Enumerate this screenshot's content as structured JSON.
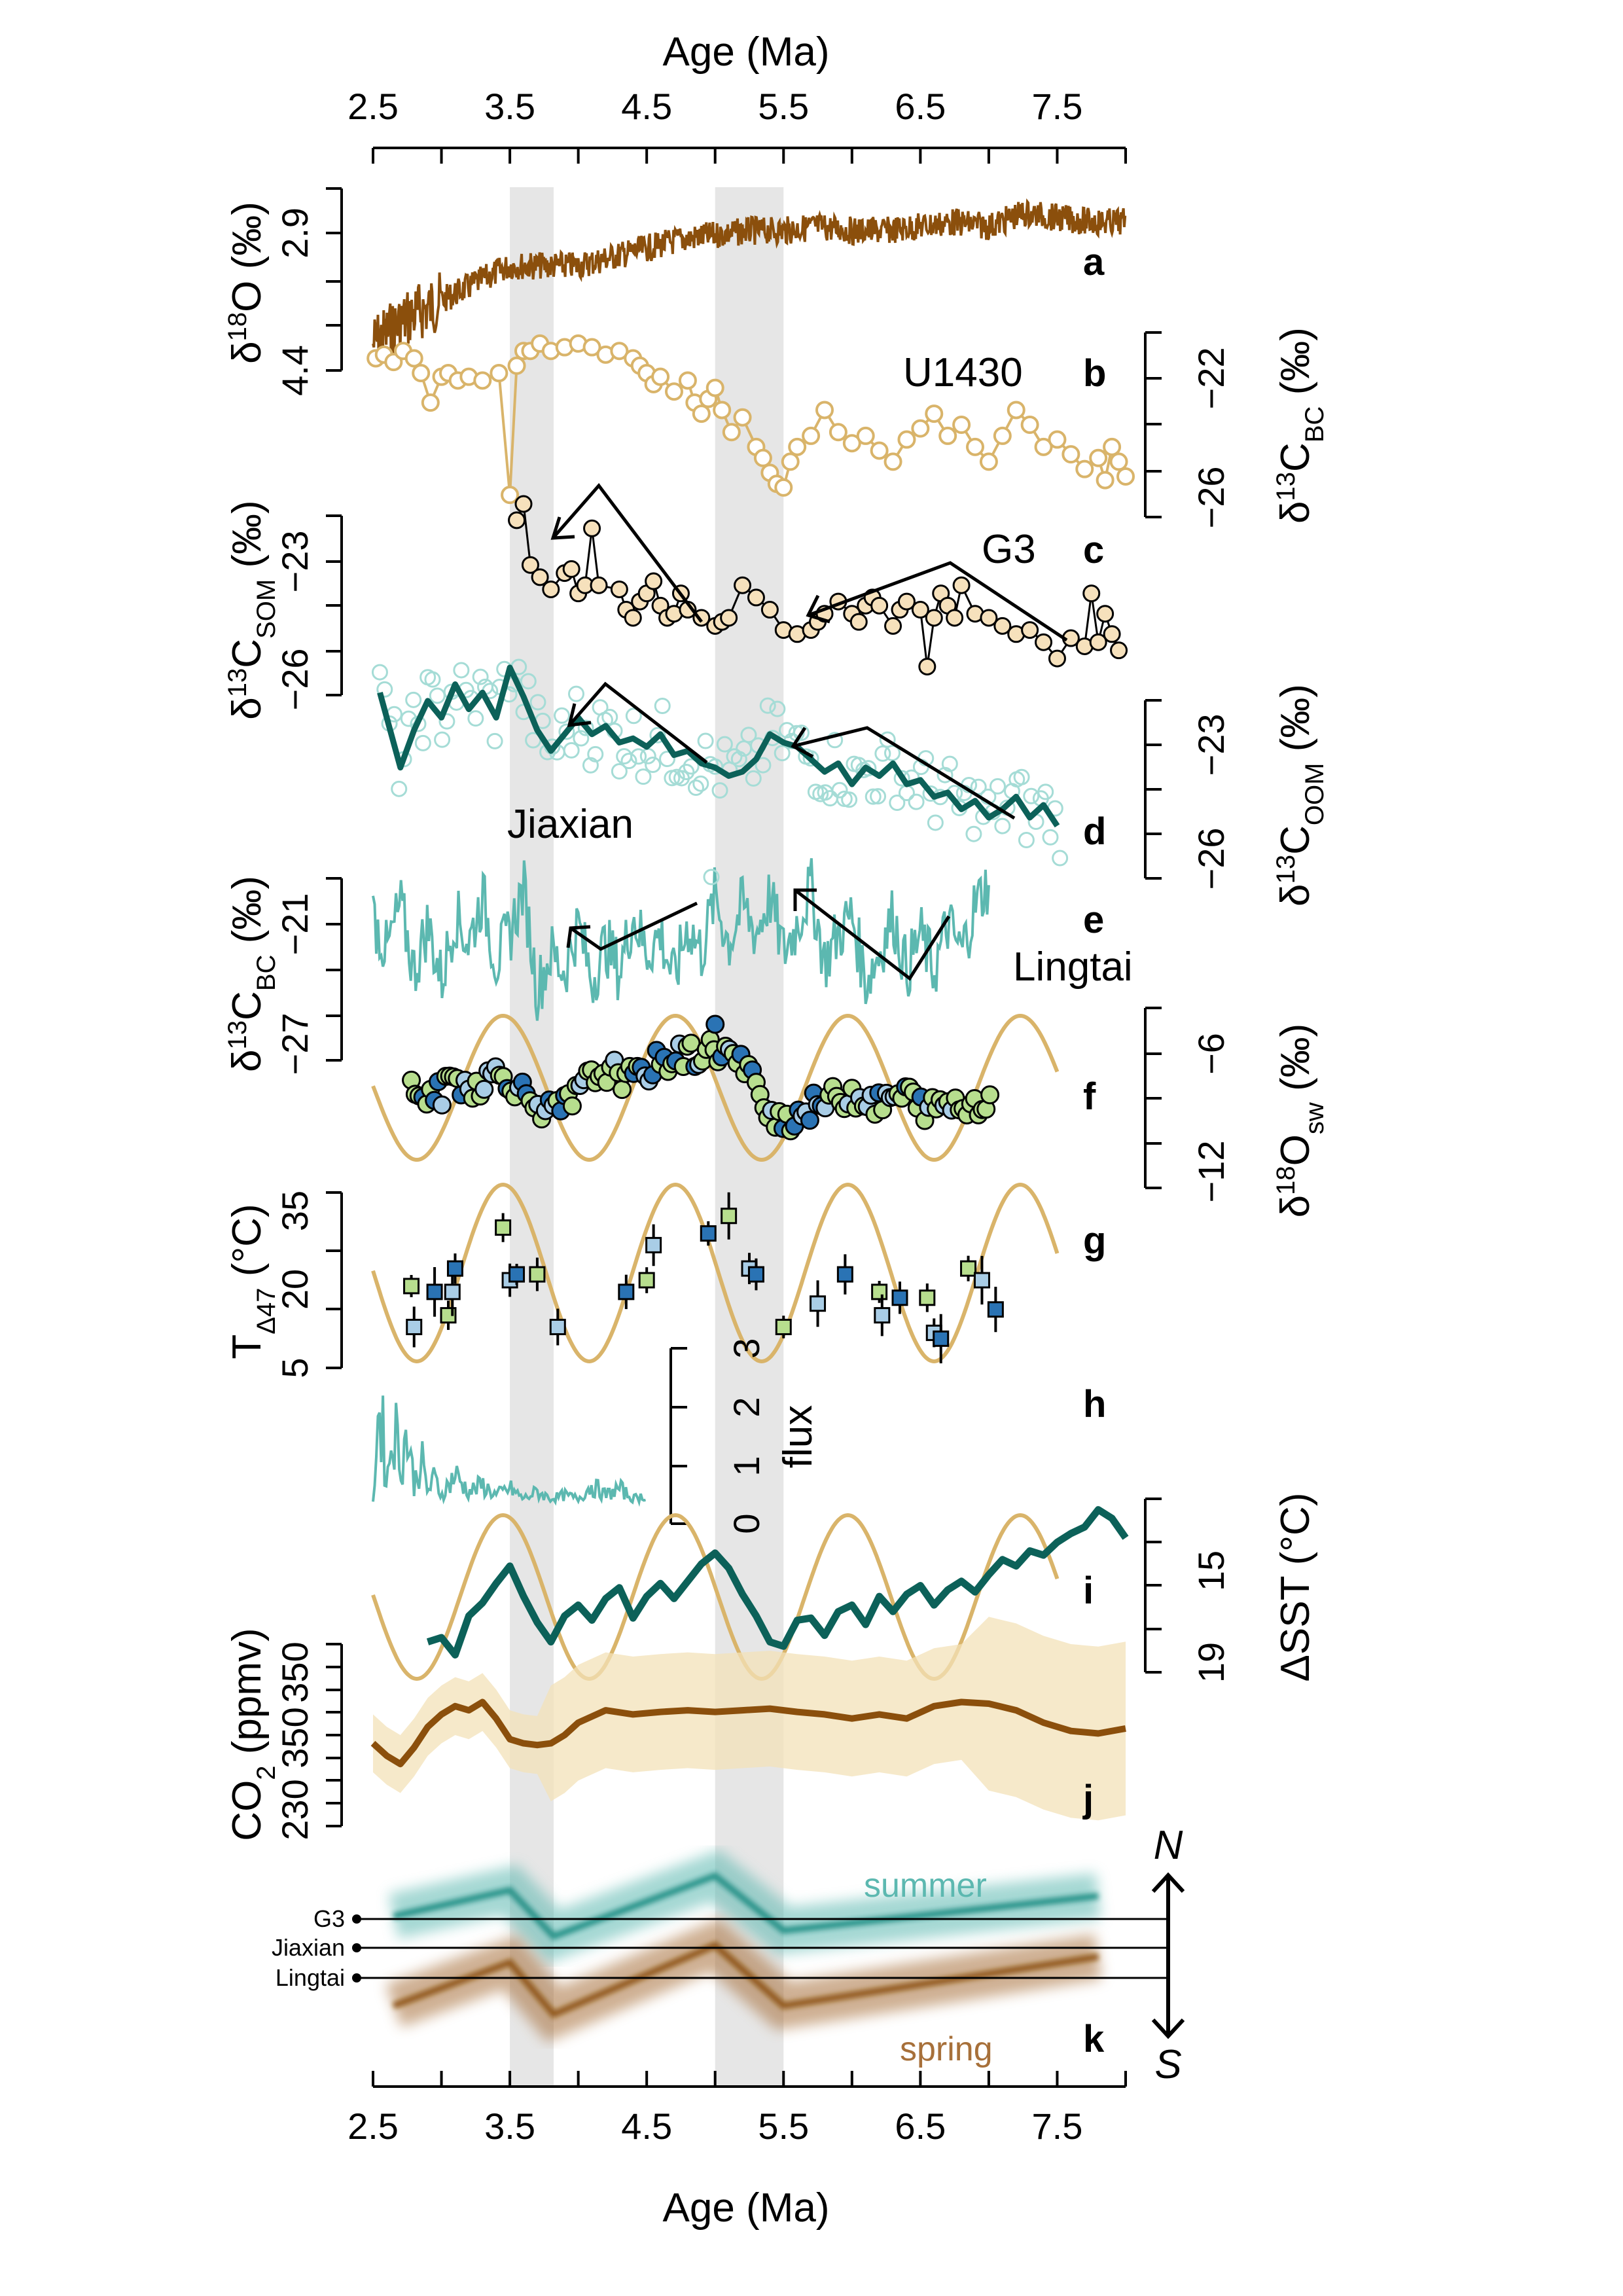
{
  "colors": {
    "brown": "#8B4F0C",
    "tan": "#D9B46A",
    "tan_fill": "#F3E2B8",
    "dark_teal": "#0C6159",
    "teal": "#5CB8B0",
    "light_teal": "#A5DCD6",
    "green": "#B7DE8E",
    "blue": "#2A73B4",
    "light_blue": "#A9CDE6",
    "shade": "#E6E6E6"
  },
  "top_axis": {
    "label": "Age (Ma)",
    "ticks": [
      "2.5",
      "3.5",
      "4.5",
      "5.5",
      "6.5",
      "7.5"
    ]
  },
  "bottom_axis": {
    "label": "Age (Ma)",
    "ticks": [
      "2.5",
      "3.5",
      "4.5",
      "5.5",
      "6.5",
      "7.5"
    ]
  },
  "shaded_intervals": [
    [
      3.5,
      3.82
    ],
    [
      5.0,
      5.5
    ]
  ],
  "panels": {
    "a": {
      "letter": "a",
      "ylabel": "δ18O (‰)",
      "ticks": [
        "2.9",
        "4.4"
      ]
    },
    "b": {
      "letter": "b",
      "site": "U1430",
      "ylabel": "δ13CBC (‰)",
      "ticks": [
        "−22",
        "−26"
      ]
    },
    "c": {
      "letter": "c",
      "site": "G3",
      "ylabel": "δ13CSOM (‰)",
      "ticks": [
        "−23",
        "−26"
      ]
    },
    "d": {
      "letter": "d",
      "site": "Jiaxian",
      "ylabel": "δ13COOM (‰)",
      "ticks": [
        "−23",
        "−26"
      ]
    },
    "e": {
      "letter": "e",
      "site": "Lingtai",
      "ylabel": "δ13CBC (‰)",
      "ticks": [
        "−21",
        "−27"
      ]
    },
    "f": {
      "letter": "f",
      "ylabel": "δ18Osw (‰)",
      "ticks": [
        "−6",
        "−12"
      ]
    },
    "g": {
      "letter": "g",
      "ylabel": "TΔ47 (°C)",
      "ticks": [
        "35",
        "20",
        "5"
      ]
    },
    "h": {
      "letter": "h",
      "ylabel": "flux",
      "ticks": [
        "0",
        "1",
        "2",
        "3"
      ]
    },
    "i": {
      "letter": "i",
      "ylabel": "ΔSST (°C)",
      "ticks": [
        "15",
        "19"
      ]
    },
    "j": {
      "letter": "j",
      "ylabel": "CO2 (ppmv)",
      "ticks": [
        "350",
        "350",
        "230"
      ]
    },
    "k": {
      "letter": "k",
      "sites": [
        "G3",
        "Jiaxian",
        "Lingtai"
      ],
      "north": "N",
      "south": "S",
      "summer": "summer",
      "spring": "spring"
    }
  },
  "chart_data": {
    "type": "line",
    "x_label": "Age (Ma)",
    "xlim": [
      2.5,
      8.0
    ],
    "series": [
      {
        "panel": "a",
        "type": "line",
        "ylim_reversed": [
          2.4,
          4.5
        ],
        "x": [
          2.5,
          2.75,
          3.0,
          3.25,
          3.5,
          3.75,
          4.0,
          4.25,
          4.5,
          4.75,
          5.0,
          5.25,
          5.5,
          5.75,
          6.0,
          6.25,
          6.5,
          6.75,
          7.0,
          7.25,
          7.5,
          7.75,
          8.0
        ],
        "y": [
          4.2,
          3.9,
          3.7,
          3.5,
          3.3,
          3.3,
          3.3,
          3.2,
          3.1,
          3.0,
          2.95,
          2.9,
          2.9,
          2.85,
          2.9,
          2.9,
          2.85,
          2.8,
          2.85,
          2.7,
          2.75,
          2.8,
          2.8
        ]
      },
      {
        "panel": "b",
        "type": "line+points",
        "ylim": [
          -26.5,
          -21.5
        ],
        "x": [
          2.52,
          2.58,
          2.65,
          2.72,
          2.8,
          2.85,
          2.92,
          3.0,
          3.05,
          3.12,
          3.2,
          3.3,
          3.42,
          3.5,
          3.55,
          3.6,
          3.65,
          3.72,
          3.8,
          3.9,
          4.0,
          4.1,
          4.2,
          4.3,
          4.4,
          4.45,
          4.5,
          4.55,
          4.6,
          4.7,
          4.8,
          4.85,
          4.9,
          4.95,
          5.0,
          5.05,
          5.12,
          5.2,
          5.3,
          5.35,
          5.4,
          5.45,
          5.5,
          5.55,
          5.6,
          5.7,
          5.8,
          5.9,
          6.0,
          6.1,
          6.2,
          6.3,
          6.4,
          6.5,
          6.6,
          6.7,
          6.8,
          6.9,
          7.0,
          7.1,
          7.2,
          7.3,
          7.4,
          7.5,
          7.6,
          7.7,
          7.8,
          7.85,
          7.9,
          7.95,
          8.0
        ],
        "y": [
          -22.2,
          -22.1,
          -22.3,
          -22.0,
          -22.2,
          -22.6,
          -23.4,
          -22.7,
          -22.6,
          -22.8,
          -22.7,
          -22.8,
          -22.6,
          -25.9,
          -22.4,
          -22.0,
          -22.0,
          -21.8,
          -22.0,
          -21.9,
          -21.8,
          -21.9,
          -22.1,
          -22.0,
          -22.2,
          -22.4,
          -22.6,
          -22.9,
          -22.7,
          -23.1,
          -22.8,
          -23.4,
          -23.7,
          -23.3,
          -23.0,
          -23.6,
          -24.2,
          -23.8,
          -24.6,
          -24.9,
          -25.3,
          -25.6,
          -25.7,
          -25.0,
          -24.6,
          -24.3,
          -23.6,
          -24.2,
          -24.5,
          -24.3,
          -24.7,
          -25.0,
          -24.4,
          -24.1,
          -23.7,
          -24.3,
          -24.0,
          -24.6,
          -25.0,
          -24.3,
          -23.6,
          -24.0,
          -24.6,
          -24.4,
          -24.8,
          -25.2,
          -24.9,
          -25.5,
          -24.6,
          -25.0,
          -25.4
        ]
      },
      {
        "panel": "c",
        "type": "line+points",
        "ylim": [
          -26.3,
          -21.6
        ],
        "x": [
          3.55,
          3.6,
          3.65,
          3.72,
          3.8,
          3.9,
          3.95,
          4.0,
          4.05,
          4.1,
          4.15,
          4.3,
          4.35,
          4.4,
          4.45,
          4.5,
          4.55,
          4.6,
          4.65,
          4.7,
          4.75,
          4.8,
          4.9,
          5.0,
          5.05,
          5.1,
          5.2,
          5.3,
          5.4,
          5.5,
          5.6,
          5.7,
          5.75,
          5.8,
          5.9,
          6.0,
          6.05,
          6.1,
          6.15,
          6.2,
          6.3,
          6.35,
          6.4,
          6.5,
          6.55,
          6.6,
          6.65,
          6.7,
          6.75,
          6.8,
          6.9,
          7.0,
          7.1,
          7.2,
          7.3,
          7.4,
          7.5,
          7.6,
          7.7,
          7.75,
          7.8,
          7.85,
          7.9,
          7.95
        ],
        "y": [
          -22.0,
          -21.6,
          -23.1,
          -23.4,
          -23.7,
          -23.3,
          -23.2,
          -23.8,
          -23.6,
          -22.2,
          -23.6,
          -23.7,
          -24.2,
          -24.4,
          -24.0,
          -23.8,
          -23.5,
          -24.1,
          -24.4,
          -24.3,
          -23.8,
          -24.2,
          -24.4,
          -24.6,
          -24.5,
          -24.4,
          -23.6,
          -23.9,
          -24.2,
          -24.7,
          -24.8,
          -24.7,
          -24.5,
          -24.3,
          -24.0,
          -24.3,
          -24.5,
          -24.1,
          -23.9,
          -24.1,
          -24.6,
          -24.2,
          -24.0,
          -24.2,
          -25.6,
          -24.4,
          -23.8,
          -24.1,
          -24.4,
          -23.6,
          -24.3,
          -24.4,
          -24.6,
          -24.8,
          -24.7,
          -25.0,
          -25.4,
          -24.9,
          -25.1,
          -23.8,
          -25.0,
          -24.3,
          -24.8,
          -25.2
        ]
      },
      {
        "panel": "d",
        "type": "smoothed line",
        "ylim": [
          -26.4,
          -22.0
        ],
        "x": [
          2.55,
          2.7,
          2.8,
          2.9,
          3.0,
          3.1,
          3.2,
          3.3,
          3.4,
          3.5,
          3.6,
          3.7,
          3.8,
          3.9,
          4.0,
          4.1,
          4.2,
          4.3,
          4.4,
          4.5,
          4.6,
          4.7,
          4.8,
          4.9,
          5.0,
          5.1,
          5.2,
          5.3,
          5.4,
          5.5,
          5.6,
          5.7,
          5.8,
          5.9,
          6.0,
          6.1,
          6.2,
          6.3,
          6.4,
          6.5,
          6.6,
          6.7,
          6.8,
          6.9,
          7.0,
          7.1,
          7.2,
          7.3,
          7.4,
          7.5
        ],
        "y": [
          -22.6,
          -24.4,
          -23.5,
          -22.8,
          -23.2,
          -22.4,
          -23.0,
          -22.6,
          -23.2,
          -22.0,
          -22.7,
          -23.5,
          -24.0,
          -23.6,
          -23.2,
          -23.6,
          -23.4,
          -23.8,
          -23.7,
          -23.9,
          -23.6,
          -24.1,
          -24.0,
          -24.3,
          -24.4,
          -24.6,
          -24.5,
          -24.2,
          -23.6,
          -23.8,
          -23.9,
          -24.2,
          -24.5,
          -24.3,
          -24.8,
          -24.4,
          -24.6,
          -24.3,
          -24.8,
          -24.7,
          -25.1,
          -25.0,
          -25.4,
          -25.2,
          -25.6,
          -25.4,
          -25.1,
          -25.6,
          -25.3,
          -25.8
        ]
      },
      {
        "panel": "e",
        "type": "line",
        "ylim": [
          -28.5,
          -19.5
        ],
        "x": [
          2.5,
          2.6,
          2.7,
          2.8,
          2.9,
          3.0,
          3.1,
          3.2,
          3.3,
          3.4,
          3.5,
          3.6,
          3.7,
          3.8,
          3.9,
          4.0,
          4.1,
          4.2,
          4.3,
          4.4,
          4.5,
          4.6,
          4.7,
          4.8,
          4.9,
          5.0,
          5.1,
          5.2,
          5.3,
          5.4,
          5.5,
          5.6,
          5.7,
          5.8,
          5.9,
          6.0,
          6.1,
          6.2,
          6.3,
          6.4,
          6.5,
          6.6,
          6.7,
          6.8,
          6.9,
          7.0
        ],
        "y": [
          -21.5,
          -23.5,
          -21.0,
          -24.5,
          -22.0,
          -25.0,
          -21.5,
          -23.0,
          -20.5,
          -24.0,
          -22.5,
          -20.0,
          -25.5,
          -23.5,
          -24.5,
          -22.0,
          -25.0,
          -23.0,
          -24.5,
          -21.5,
          -23.5,
          -22.5,
          -25.0,
          -22.0,
          -23.5,
          -20.5,
          -23.0,
          -21.0,
          -22.5,
          -20.5,
          -23.5,
          -22.0,
          -20.0,
          -24.0,
          -22.5,
          -21.5,
          -25.0,
          -23.5,
          -21.5,
          -24.5,
          -22.5,
          -24.5,
          -22.0,
          -23.5,
          -21.0,
          -19.8
        ]
      },
      {
        "panel": "f",
        "type": "points",
        "ylim": [
          -13.5,
          -4.5
        ],
        "x": [
          2.8,
          2.9,
          3.0,
          3.1,
          3.2,
          3.3,
          3.4,
          3.5,
          3.6,
          3.7,
          3.8,
          3.9,
          4.0,
          4.1,
          4.2,
          4.3,
          4.4,
          4.5,
          4.6,
          4.7,
          4.8,
          4.9,
          5.0,
          5.1,
          5.2,
          5.3,
          5.4,
          5.5,
          5.6,
          5.7,
          5.8,
          5.9,
          6.0,
          6.1,
          6.2,
          6.3,
          6.4,
          6.5,
          6.6,
          6.7,
          6.8,
          6.9,
          7.0
        ],
        "y": [
          -8.5,
          -9.0,
          -8.8,
          -8.0,
          -8.5,
          -8.2,
          -7.8,
          -8.0,
          -8.8,
          -9.2,
          -9.8,
          -9.5,
          -8.8,
          -8.0,
          -7.6,
          -7.8,
          -8.2,
          -7.6,
          -7.2,
          -7.0,
          -6.8,
          -6.9,
          -6.5,
          -6.8,
          -7.4,
          -8.5,
          -9.5,
          -10.2,
          -9.8,
          -9.5,
          -9.2,
          -9.0,
          -8.8,
          -9.0,
          -9.4,
          -9.0,
          -8.8,
          -9.4,
          -9.6,
          -9.2,
          -9.5,
          -9.2,
          -9.0
        ]
      },
      {
        "panel": "g",
        "type": "points with error bars",
        "ylim": [
          5,
          35
        ],
        "x": [
          2.78,
          2.8,
          2.95,
          3.05,
          3.08,
          3.1,
          3.45,
          3.5,
          3.55,
          3.7,
          3.85,
          4.35,
          4.5,
          4.55,
          4.95,
          5.1,
          5.25,
          5.3,
          5.5,
          5.75,
          5.95,
          6.2,
          6.22,
          6.35,
          6.55,
          6.6,
          6.65,
          6.85,
          6.95,
          7.05
        ],
        "y": [
          19,
          12,
          18,
          14,
          18,
          22,
          29,
          20,
          21,
          21,
          12,
          18,
          20,
          26,
          28,
          31,
          22,
          21,
          12,
          16,
          21,
          18,
          14,
          17,
          17,
          11,
          10,
          22,
          20,
          15
        ]
      },
      {
        "panel": "h",
        "type": "line",
        "ylim": [
          0,
          3.5
        ],
        "x": [
          2.5,
          2.55,
          2.6,
          2.65,
          2.7,
          2.75,
          2.8,
          2.85,
          2.9,
          2.95,
          3.0,
          3.1,
          3.2,
          3.3,
          3.4,
          3.5,
          3.6,
          3.7,
          3.8,
          3.9,
          4.0,
          4.1,
          4.2,
          4.3,
          4.4,
          4.5
        ],
        "y": [
          0.2,
          3.2,
          0.6,
          2.6,
          1.2,
          2.2,
          0.6,
          1.4,
          0.4,
          0.8,
          0.3,
          0.9,
          0.4,
          0.6,
          0.3,
          0.5,
          0.2,
          0.4,
          0.2,
          0.3,
          0.2,
          0.6,
          0.3,
          0.5,
          0.2,
          0.3
        ]
      },
      {
        "panel": "i",
        "type": "line",
        "ylim_reversed": [
          12,
          20
        ],
        "x": [
          2.9,
          3.0,
          3.1,
          3.2,
          3.3,
          3.4,
          3.5,
          3.6,
          3.7,
          3.8,
          3.9,
          4.0,
          4.1,
          4.2,
          4.3,
          4.4,
          4.5,
          4.6,
          4.7,
          4.8,
          4.9,
          5.0,
          5.1,
          5.2,
          5.3,
          5.4,
          5.5,
          5.6,
          5.7,
          5.8,
          5.9,
          6.0,
          6.1,
          6.2,
          6.3,
          6.4,
          6.5,
          6.6,
          6.7,
          6.8,
          6.9,
          7.0,
          7.1,
          7.2,
          7.3,
          7.4,
          7.5,
          7.6,
          7.7,
          7.8,
          7.9,
          8.0
        ],
        "y": [
          18.6,
          18.4,
          19.2,
          17.4,
          16.8,
          15.9,
          15.1,
          16.5,
          17.7,
          18.6,
          17.4,
          16.9,
          17.6,
          16.6,
          16.1,
          17.5,
          16.5,
          15.9,
          16.6,
          15.8,
          15.0,
          14.5,
          15.2,
          16.4,
          17.4,
          18.6,
          18.8,
          17.6,
          17.5,
          18.3,
          17.2,
          16.9,
          17.8,
          16.5,
          17.2,
          16.4,
          16.0,
          16.9,
          16.2,
          15.8,
          16.3,
          15.5,
          14.8,
          15.1,
          14.4,
          14.6,
          14.0,
          13.6,
          13.3,
          12.5,
          12.9,
          13.8
        ]
      },
      {
        "panel": "j",
        "type": "line with uncertainty band",
        "ylim": [
          200,
          420
        ],
        "x": [
          2.5,
          2.6,
          2.7,
          2.8,
          2.9,
          3.0,
          3.1,
          3.2,
          3.3,
          3.4,
          3.5,
          3.6,
          3.7,
          3.8,
          3.9,
          4.0,
          4.2,
          4.4,
          4.6,
          4.8,
          5.0,
          5.2,
          5.4,
          5.6,
          5.8,
          6.0,
          6.2,
          6.4,
          6.6,
          6.8,
          7.0,
          7.2,
          7.4,
          7.6,
          7.8,
          8.0
        ],
        "y": [
          300,
          285,
          275,
          295,
          320,
          335,
          345,
          340,
          350,
          330,
          305,
          300,
          298,
          300,
          310,
          325,
          340,
          335,
          338,
          340,
          338,
          340,
          342,
          338,
          335,
          330,
          335,
          330,
          345,
          350,
          348,
          340,
          325,
          315,
          312,
          318
        ]
      },
      {
        "panel": "k",
        "type": "schematic",
        "series_names": [
          "summer",
          "spring"
        ],
        "x": [
          2.65,
          3.5,
          3.82,
          5.0,
          5.5,
          7.8
        ],
        "y_summer": [
          0.55,
          1.0,
          0.2,
          1.25,
          0.3,
          0.9
        ],
        "y_spring": [
          -0.55,
          0.2,
          -0.7,
          0.5,
          -0.55,
          0.3
        ]
      }
    ]
  }
}
